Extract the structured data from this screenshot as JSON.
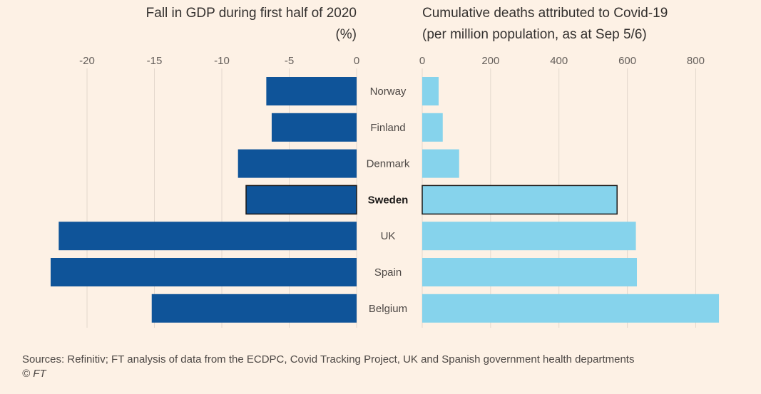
{
  "chart_data": [
    {
      "type": "bar",
      "orientation": "horizontal",
      "title_line1": "Fall in GDP during first half of 2020",
      "title_line2": "(%)",
      "categories": [
        "Norway",
        "Finland",
        "Denmark",
        "Sweden",
        "UK",
        "Spain",
        "Belgium"
      ],
      "values": [
        -6.7,
        -6.3,
        -8.8,
        -8.2,
        -22.1,
        -22.7,
        -15.2
      ],
      "xlim": [
        -22.7,
        0
      ],
      "ticks": [
        -20,
        -15,
        -10,
        -5,
        0
      ],
      "tick_labels": [
        "-20",
        "-15",
        "-10",
        "-5",
        "0"
      ],
      "highlight": "Sweden",
      "color": "#0f5499"
    },
    {
      "type": "bar",
      "orientation": "horizontal",
      "title_line1": "Cumulative deaths attributed to Covid-19",
      "title_line2": "(per million population, as at Sep 5/6)",
      "categories": [
        "Norway",
        "Finland",
        "Denmark",
        "Sweden",
        "UK",
        "Spain",
        "Belgium"
      ],
      "values": [
        48,
        60,
        108,
        570,
        625,
        628,
        868
      ],
      "xlim": [
        0,
        870
      ],
      "ticks": [
        0,
        200,
        400,
        600,
        800
      ],
      "tick_labels": [
        "0",
        "200",
        "400",
        "600",
        "800"
      ],
      "highlight": "Sweden",
      "color": "#86d3ec"
    }
  ],
  "source_text": "Sources: Refinitiv; FT analysis of data from the ECDPC, Covid Tracking Project, UK and Spanish government health departments",
  "copyright_text": "© FT"
}
